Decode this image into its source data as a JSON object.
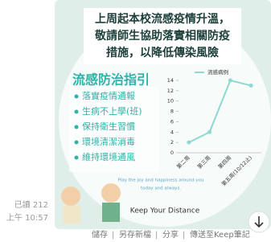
{
  "message": {
    "read": "已讀 212",
    "time": "上午 10:57"
  },
  "poster": {
    "title_lines": [
      "上周起本校流感疫情升溫，",
      "敬請師生協助落實相關防疫",
      "措施，以降低傳染風險"
    ],
    "guide_title": "流感防治指引",
    "guide_items": [
      "落實疫情通報",
      "生病不上學(班)",
      "保持衛生習慣",
      "環境清潔消毒",
      "維持環境通風"
    ],
    "slogan_lines": [
      "Play the joy and happiness around you",
      "today and always."
    ],
    "footer": "Keep Your Distance"
  },
  "chart_data": {
    "type": "line",
    "categories": [
      "第二周",
      "第三周",
      "第四周",
      "第五周(10/12止)"
    ],
    "series": [
      {
        "name": "流感病例",
        "color": "#8fd8d2",
        "values": [
          2,
          4,
          14,
          13
        ]
      }
    ],
    "ylim": [
      0,
      14
    ],
    "yticks": [
      0,
      2,
      4,
      6,
      8,
      10,
      12,
      14
    ]
  },
  "actions": [
    "儲存",
    "另存新檔",
    "分享",
    "傳送至Keep筆記"
  ]
}
